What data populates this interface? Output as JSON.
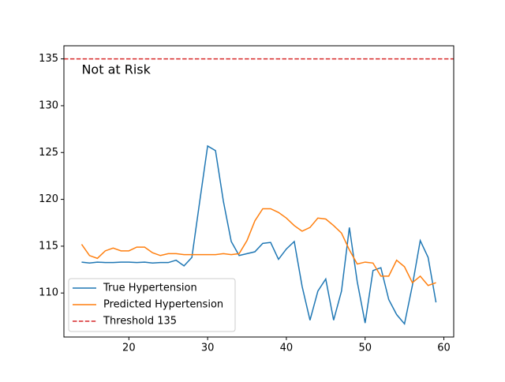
{
  "chart_data": {
    "type": "line",
    "x": [
      14,
      15,
      16,
      17,
      18,
      19,
      20,
      21,
      22,
      23,
      24,
      25,
      26,
      27,
      28,
      29,
      30,
      31,
      32,
      33,
      34,
      35,
      36,
      37,
      38,
      39,
      40,
      41,
      42,
      43,
      44,
      45,
      46,
      47,
      48,
      49,
      50,
      51,
      52,
      53,
      54,
      55,
      56,
      57,
      58,
      59
    ],
    "series": [
      {
        "name": "True Hypertension",
        "color": "#1f77b4",
        "values": [
          113.3,
          113.2,
          113.3,
          113.25,
          113.25,
          113.3,
          113.3,
          113.25,
          113.3,
          113.2,
          113.25,
          113.25,
          113.5,
          112.9,
          113.8,
          119.8,
          125.7,
          125.2,
          119.8,
          115.5,
          114.0,
          114.2,
          114.4,
          115.3,
          115.4,
          113.6,
          114.7,
          115.5,
          110.7,
          107.1,
          110.2,
          111.5,
          107.1,
          110.2,
          117.0,
          111.2,
          106.8,
          112.4,
          112.7,
          109.3,
          107.7,
          106.7,
          110.8,
          115.6,
          113.8,
          109.0
        ]
      },
      {
        "name": "Predicted Hypertension",
        "color": "#ff7f0e",
        "values": [
          115.2,
          114.0,
          113.7,
          114.5,
          114.8,
          114.5,
          114.5,
          114.9,
          114.9,
          114.3,
          114.0,
          114.2,
          114.2,
          114.1,
          114.1,
          114.1,
          114.1,
          114.1,
          114.2,
          114.1,
          114.2,
          115.6,
          117.7,
          119.0,
          119.0,
          118.6,
          118.0,
          117.2,
          116.6,
          117.0,
          118.0,
          117.9,
          117.2,
          116.4,
          114.6,
          113.1,
          113.3,
          113.2,
          111.8,
          111.8,
          113.5,
          112.8,
          111.1,
          111.8,
          110.8,
          111.1
        ]
      }
    ],
    "hlines": [
      {
        "name": "Threshold 135",
        "y": 135,
        "color": "#d62728"
      }
    ],
    "annotation": "Not at Risk",
    "xlim": [
      11.75,
      61.25
    ],
    "ylim": [
      105.3,
      136.4
    ],
    "xticks": [
      20,
      30,
      40,
      50,
      60
    ],
    "yticks": [
      110,
      115,
      120,
      125,
      130,
      135
    ],
    "legend": "lower-left"
  }
}
